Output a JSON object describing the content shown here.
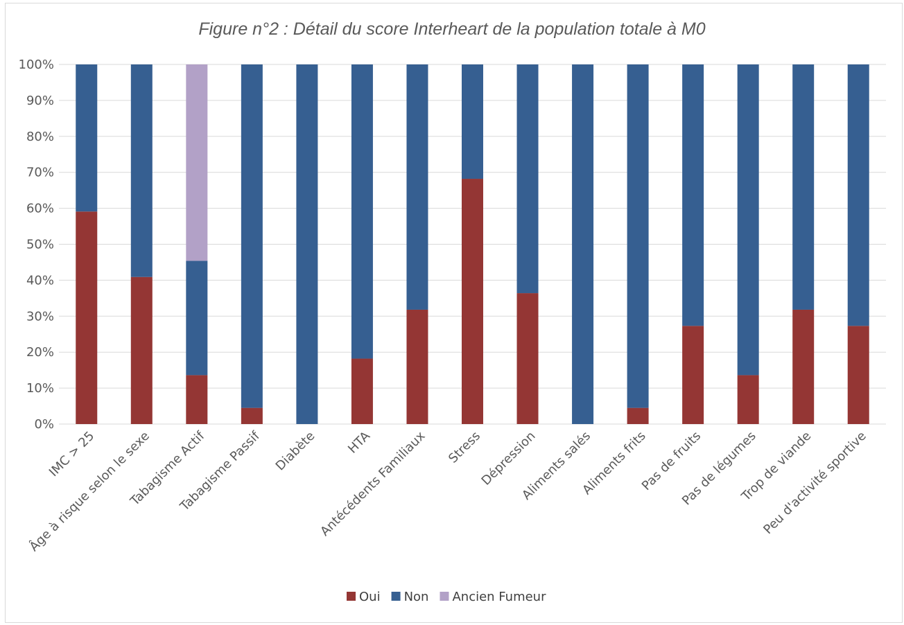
{
  "chart_data": {
    "type": "bar",
    "stacked": true,
    "title": "Figure n°2 : Détail du score Interheart de la population totale à M0",
    "xlabel": "",
    "ylabel": "",
    "ylim": [
      0,
      100
    ],
    "y_ticks": [
      "0%",
      "10%",
      "20%",
      "30%",
      "40%",
      "50%",
      "60%",
      "70%",
      "80%",
      "90%",
      "100%"
    ],
    "grid": true,
    "legend_position": "bottom",
    "categories": [
      "IMC > 25",
      "Âge à risque selon le sexe",
      "Tabagisme Actif",
      "Tabagisme Passif",
      "Diabète",
      "HTA",
      "Antécédents Familiaux",
      "Stress",
      "Dépression",
      "Aliments salés",
      "Aliments frits",
      "Pas de fruits",
      "Pas de légumes",
      "Trop de viande",
      "Peu d'activité sportive"
    ],
    "series": [
      {
        "name": "Oui",
        "color": "#943634",
        "values": [
          59.1,
          40.9,
          13.6,
          4.5,
          0,
          18.2,
          31.8,
          68.2,
          36.4,
          0,
          4.5,
          27.3,
          13.6,
          31.8,
          27.3
        ]
      },
      {
        "name": "Non",
        "color": "#365F91",
        "values": [
          40.9,
          59.1,
          31.8,
          95.5,
          100,
          81.8,
          68.2,
          31.8,
          63.6,
          100,
          95.5,
          72.7,
          86.4,
          68.2,
          72.7
        ]
      },
      {
        "name": "Ancien Fumeur",
        "color": "#B2A1C7",
        "values": [
          0,
          0,
          54.6,
          0,
          0,
          0,
          0,
          0,
          0,
          0,
          0,
          0,
          0,
          0,
          0
        ]
      }
    ]
  }
}
